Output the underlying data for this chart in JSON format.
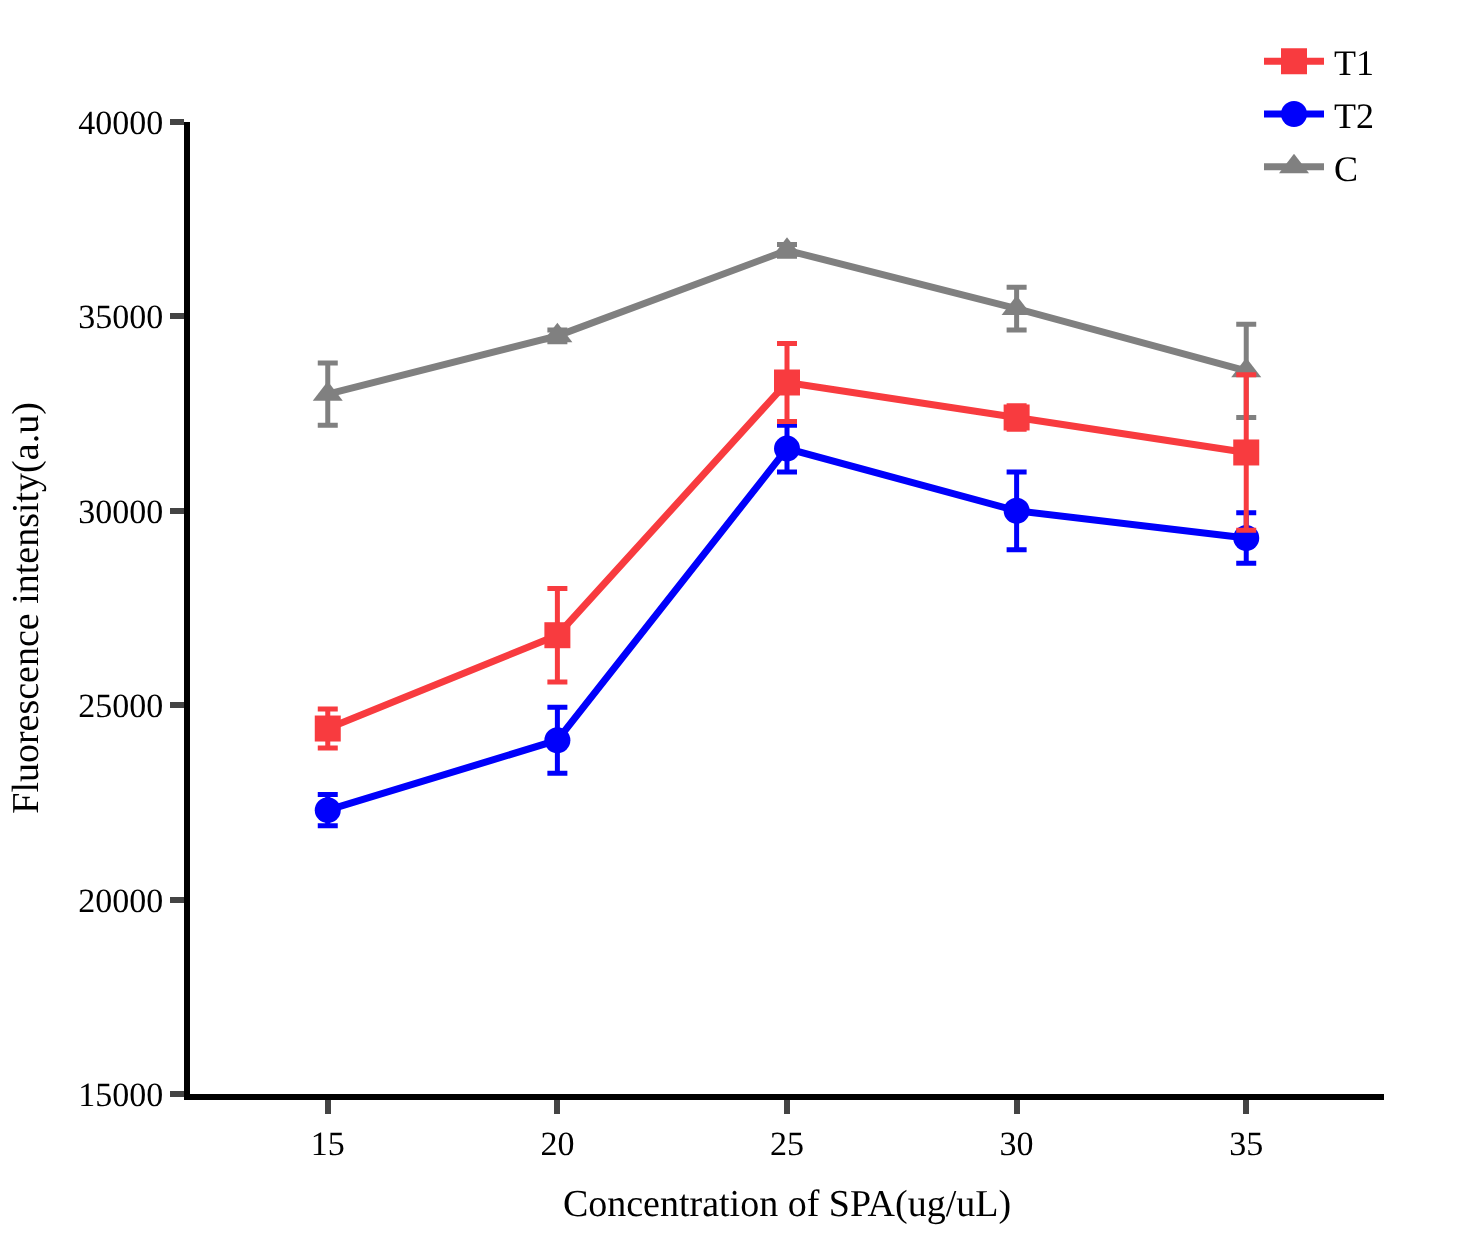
{
  "chart_data": {
    "type": "line",
    "xlabel": "Concentration of SPA(ug/uL)",
    "ylabel": "Fluorescence intensity(a.u)",
    "x": [
      15,
      20,
      25,
      30,
      35
    ],
    "series": [
      {
        "name": "T1",
        "color": "#f83b3f",
        "marker": "square",
        "values": [
          24400,
          26800,
          33300,
          32400,
          31500
        ],
        "errors": [
          500,
          1200,
          1000,
          300,
          2000
        ]
      },
      {
        "name": "T2",
        "color": "#0000fb",
        "marker": "circle",
        "values": [
          22300,
          24100,
          31600,
          30000,
          29300
        ],
        "errors": [
          400,
          850,
          600,
          1000,
          650
        ]
      },
      {
        "name": "C",
        "color": "#808080",
        "marker": "triangle",
        "values": [
          33000,
          34500,
          36700,
          35200,
          33600
        ],
        "errors": [
          800,
          150,
          150,
          550,
          1200
        ]
      }
    ],
    "xlim": [
      12,
      38
    ],
    "xticks": [
      15,
      20,
      25,
      30,
      35
    ],
    "ylim": [
      15000,
      40000
    ],
    "yticks": [
      15000,
      20000,
      25000,
      30000,
      35000,
      40000
    ],
    "legend": "top right",
    "line_style": "solid"
  }
}
